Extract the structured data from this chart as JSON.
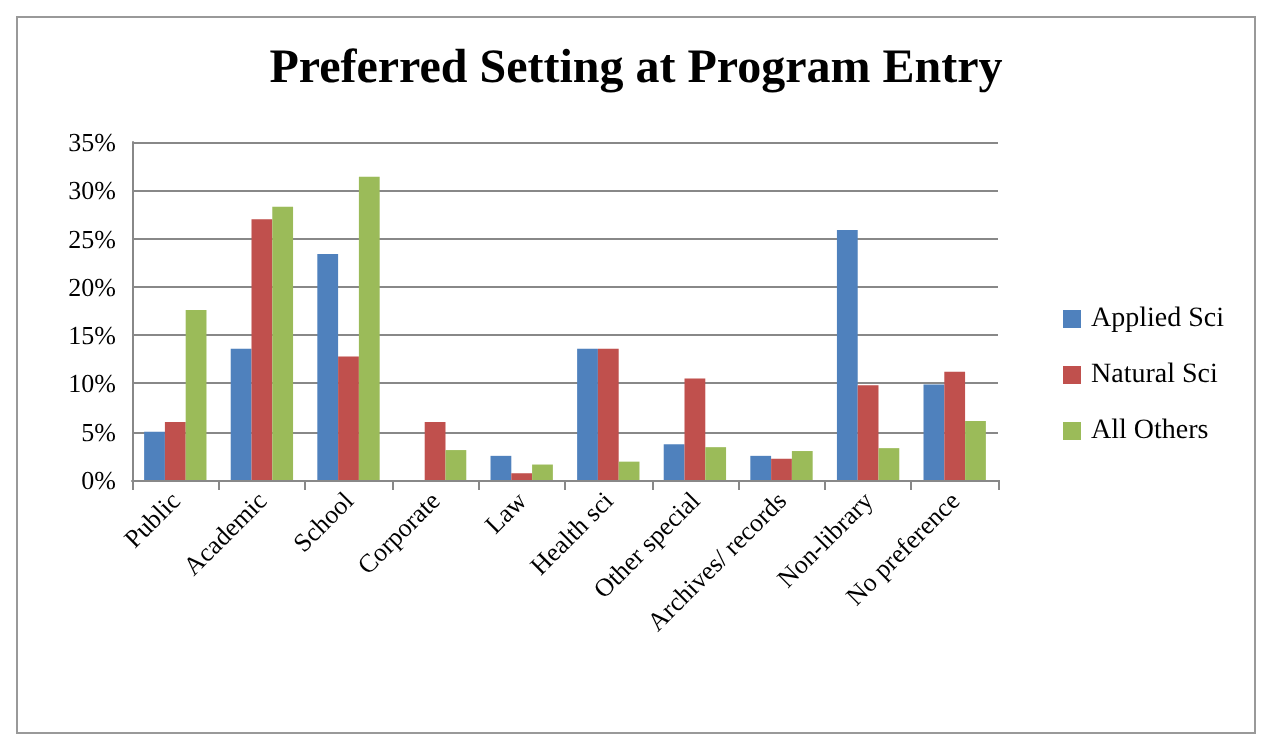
{
  "chart_data": {
    "type": "bar",
    "title": "Preferred Setting at Program Entry",
    "categories": [
      "Public",
      "Academic",
      "School",
      "Corporate",
      "Law",
      "Health sci",
      "Other special",
      "Archives/ records",
      "Non-library",
      "No preference"
    ],
    "series": [
      {
        "name": "Applied Sci",
        "color": "#4f81bd",
        "values": [
          5,
          13.6,
          23.4,
          0,
          2.5,
          13.6,
          3.7,
          2.5,
          25.9,
          9.9
        ]
      },
      {
        "name": "Natural Sci",
        "color": "#c0504d",
        "values": [
          6,
          27,
          12.8,
          6,
          0.7,
          13.6,
          10.5,
          2.2,
          9.8,
          11.2
        ]
      },
      {
        "name": "All Others",
        "color": "#9bbb59",
        "values": [
          17.6,
          28.3,
          31.4,
          3.1,
          1.6,
          1.9,
          3.4,
          3,
          3.3,
          6.1
        ]
      }
    ],
    "ylim": [
      0,
      35
    ],
    "yticks": [
      {
        "value": 0,
        "label": "0%"
      },
      {
        "value": 5,
        "label": "5%"
      },
      {
        "value": 10,
        "label": "10%"
      },
      {
        "value": 15,
        "label": "15%"
      },
      {
        "value": 20,
        "label": "20%"
      },
      {
        "value": 25,
        "label": "25%"
      },
      {
        "value": 30,
        "label": "30%"
      },
      {
        "value": 35,
        "label": "35%"
      }
    ],
    "grid": "y",
    "legend": "right"
  }
}
